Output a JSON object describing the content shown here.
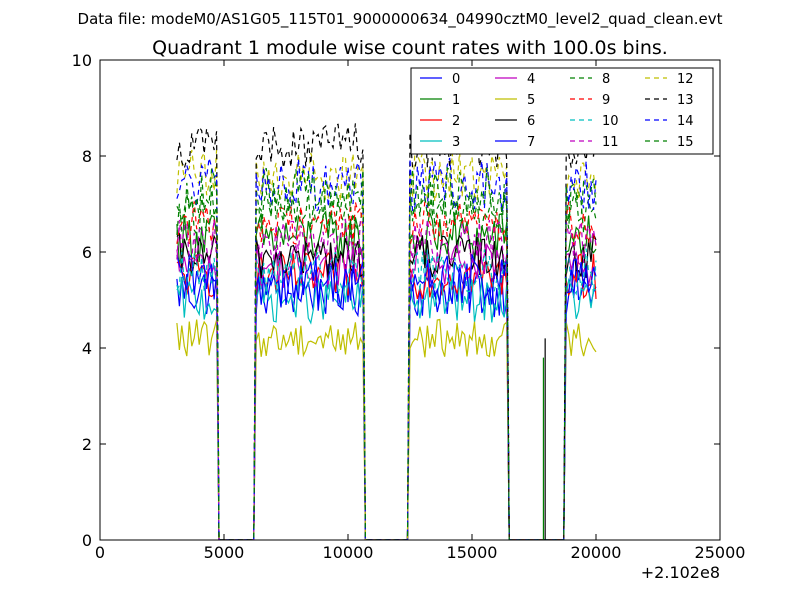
{
  "suptitle": "Data file: modeM0/AS1G05_115T01_9000000634_04990cztM0_level2_quad_clean.evt",
  "chart_data": {
    "type": "line",
    "title": "Quadrant 1 module wise count rates with 100.0s bins.",
    "xlabel": "",
    "ylabel": "",
    "xlim": [
      0,
      25000
    ],
    "ylim": [
      0,
      10
    ],
    "x_offset_label": "+2.102e8",
    "x_ticks": [
      0,
      5000,
      10000,
      15000,
      20000,
      25000
    ],
    "x_tick_labels": [
      "0",
      "5000",
      "10000",
      "15000",
      "20000",
      "25000"
    ],
    "y_ticks": [
      0,
      2,
      4,
      6,
      8,
      10
    ],
    "y_tick_labels": [
      "0",
      "2",
      "4",
      "6",
      "8",
      "10"
    ],
    "grid": false,
    "legend_position": "top-right",
    "legend_columns": 4,
    "active_intervals": [
      [
        3100,
        4700
      ],
      [
        6250,
        10600
      ],
      [
        12500,
        16400
      ],
      [
        18750,
        20000
      ]
    ],
    "spikes": [
      {
        "x": 17880,
        "y": 3.8
      },
      {
        "x": 17950,
        "y": 4.2
      }
    ],
    "series": [
      {
        "name": "0",
        "color": "#0000ff",
        "style": "solid",
        "level": 5.2,
        "noise": 0.35
      },
      {
        "name": "1",
        "color": "#008000",
        "style": "solid",
        "level": 6.3,
        "noise": 0.35
      },
      {
        "name": "2",
        "color": "#ff0000",
        "style": "solid",
        "level": 5.5,
        "noise": 0.3
      },
      {
        "name": "3",
        "color": "#00bfbf",
        "style": "solid",
        "level": 5.0,
        "noise": 0.3
      },
      {
        "name": "4",
        "color": "#bf00bf",
        "style": "solid",
        "level": 5.7,
        "noise": 0.3
      },
      {
        "name": "5",
        "color": "#bfbf00",
        "style": "solid",
        "level": 4.2,
        "noise": 0.25
      },
      {
        "name": "6",
        "color": "#000000",
        "style": "solid",
        "level": 5.9,
        "noise": 0.3
      },
      {
        "name": "7",
        "color": "#0000ff",
        "style": "solid",
        "level": 5.4,
        "noise": 0.35
      },
      {
        "name": "8",
        "color": "#008000",
        "style": "dashed",
        "level": 6.9,
        "noise": 0.35
      },
      {
        "name": "9",
        "color": "#ff0000",
        "style": "dashed",
        "level": 6.6,
        "noise": 0.3
      },
      {
        "name": "10",
        "color": "#00bfbf",
        "style": "dashed",
        "level": 5.6,
        "noise": 0.3
      },
      {
        "name": "11",
        "color": "#bf00bf",
        "style": "dashed",
        "level": 6.2,
        "noise": 0.3
      },
      {
        "name": "12",
        "color": "#bfbf00",
        "style": "dashed",
        "level": 7.6,
        "noise": 0.35
      },
      {
        "name": "13",
        "color": "#000000",
        "style": "dashed",
        "level": 8.2,
        "noise": 0.3
      },
      {
        "name": "14",
        "color": "#0000ff",
        "style": "dashed",
        "level": 7.4,
        "noise": 0.35
      },
      {
        "name": "15",
        "color": "#008000",
        "style": "dashed",
        "level": 7.2,
        "noise": 0.35
      }
    ]
  }
}
